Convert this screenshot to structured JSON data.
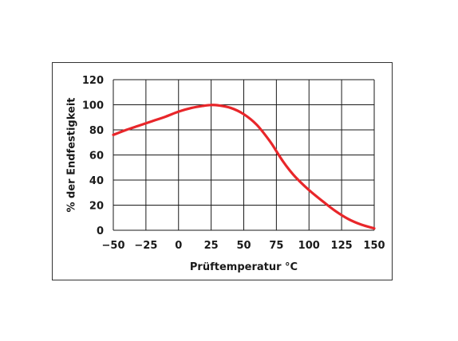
{
  "chart_data": {
    "type": "line",
    "xlabel": "Prüftemperatur °C",
    "ylabel": "% der Endfestigkeit",
    "xlim": [
      -50,
      150
    ],
    "ylim": [
      0,
      120
    ],
    "grid": true,
    "x_ticks": [
      -50,
      -25,
      0,
      25,
      50,
      75,
      100,
      125,
      150
    ],
    "x_tick_labels": [
      "−50",
      "−25",
      "0",
      "25",
      "50",
      "75",
      "100",
      "125",
      "150"
    ],
    "y_ticks": [
      0,
      20,
      40,
      60,
      80,
      100,
      120
    ],
    "y_tick_labels": [
      "0",
      "20",
      "40",
      "60",
      "80",
      "100",
      "120"
    ],
    "series": [
      {
        "color": "#e8262a",
        "x": [
          -50,
          -40,
          -30,
          -20,
          -10,
          0,
          10,
          20,
          25,
          30,
          40,
          50,
          60,
          70,
          75,
          80,
          85,
          90,
          100,
          110,
          120,
          130,
          140,
          150
        ],
        "y": [
          76,
          80,
          83.5,
          87,
          90.5,
          94.5,
          97.5,
          99.3,
          99.8,
          99.6,
          97.5,
          92.5,
          84,
          71,
          63,
          55,
          48,
          42,
          32,
          23.5,
          15.5,
          9,
          4.5,
          1.5
        ]
      }
    ]
  }
}
